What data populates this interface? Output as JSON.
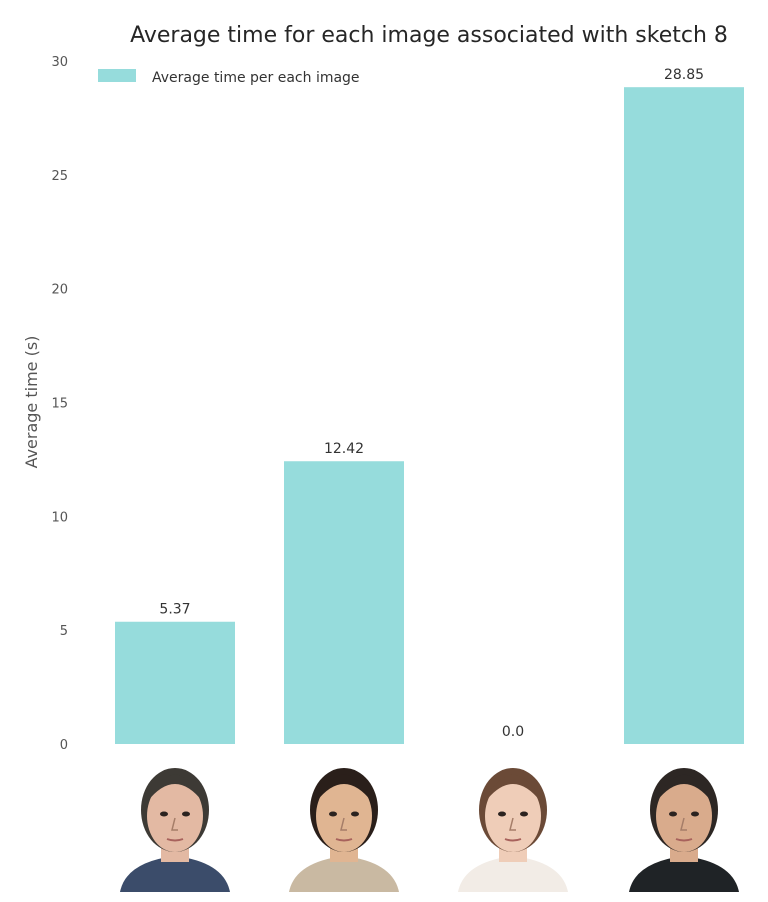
{
  "chart_data": {
    "type": "bar",
    "title": "Average time for each image associated with sketch 8",
    "xlabel": "",
    "ylabel": "Average time (s)",
    "ylim": [
      0,
      30
    ],
    "yticks": [
      0,
      5,
      10,
      15,
      20,
      25,
      30
    ],
    "categories": [
      "image 1",
      "image 2",
      "image 3",
      "image 4"
    ],
    "series": [
      {
        "name": "Average time per each image",
        "values": [
          5.37,
          12.42,
          0.0,
          28.85
        ]
      }
    ],
    "data_labels": [
      "5.37",
      "12.42",
      "0.0",
      "28.85"
    ],
    "bar_color": "#96dcdc",
    "legend": "top-left",
    "grid": false
  },
  "thumbnails": [
    {
      "icon": "face-photo",
      "skin": "#e3b9a3",
      "hair": "#3d3a35",
      "shirt": "#3b4c6a"
    },
    {
      "icon": "face-photo",
      "skin": "#e0b592",
      "hair": "#2a1f1a",
      "shirt": "#c9b9a2"
    },
    {
      "icon": "face-photo",
      "skin": "#efcdb8",
      "hair": "#6b4a37",
      "shirt": "#f2ece6"
    },
    {
      "icon": "face-photo",
      "skin": "#d9ab8c",
      "hair": "#2d2724",
      "shirt": "#1f2326"
    }
  ]
}
